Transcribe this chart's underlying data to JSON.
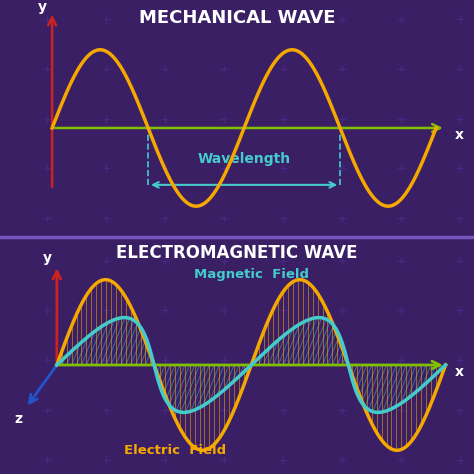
{
  "bg_top": "#3a1f65",
  "bg_bottom": "#2a1555",
  "title_top": "MECHANICAL WAVE",
  "title_bottom": "ELECTROMAGNETIC WAVE",
  "title_color": "#ffffff",
  "wave_color": "#f5a800",
  "axis_x_color": "#80c000",
  "axis_y_color": "#cc2222",
  "axis_z_color": "#2255cc",
  "wavelength_color": "#44cccc",
  "wavelength_label": "Wavelength",
  "magnetic_label": "Magnetic  Field",
  "electric_label": "Electric  Field",
  "magnetic_color": "#44cccc",
  "electric_color": "#f5a800",
  "x_label": "x",
  "y_label": "y",
  "z_label": "z",
  "grid_color": "#5533aa",
  "separator_color": "#7755bb"
}
